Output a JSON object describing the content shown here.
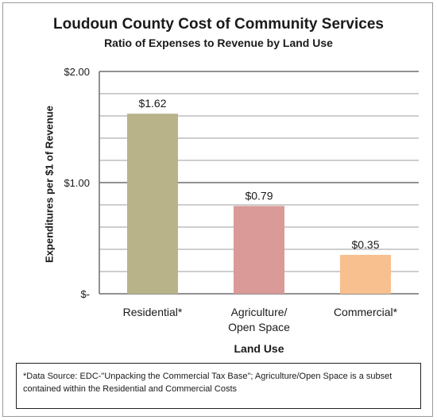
{
  "chart_data": {
    "type": "bar",
    "title": "Loudoun County Cost of Community Services",
    "subtitle": "Ratio of Expenses to Revenue by Land Use",
    "xlabel": "Land Use",
    "ylabel": "Expenditures per $1 of Revenue",
    "categories": [
      [
        "Residential*"
      ],
      [
        "Agriculture/",
        "Open Space"
      ],
      [
        "Commercial*"
      ]
    ],
    "values": [
      1.62,
      0.79,
      0.35
    ],
    "data_labels": [
      "$1.62",
      "$0.79",
      "$0.35"
    ],
    "ylim": [
      0,
      2
    ],
    "y_ticks": [
      {
        "value": 0,
        "label": "$-"
      },
      {
        "value": 1,
        "label": "$1.00"
      },
      {
        "value": 2,
        "label": "$2.00"
      }
    ],
    "minor_gridline_step": 0.2,
    "grid": true,
    "colors": [
      "#b9b38a",
      "#d99a98",
      "#f8c08f"
    ]
  },
  "footnote": "*Data Source: EDC-\"Unpacking the Commercial Tax Base\"; Agriculture/Open Space is a subset contained within the Residential and Commercial Costs"
}
